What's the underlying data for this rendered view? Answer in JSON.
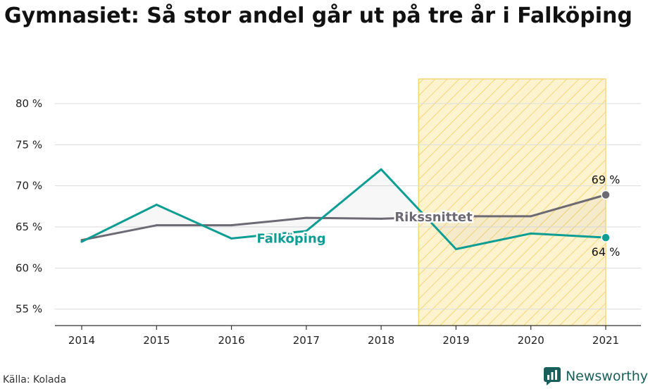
{
  "title": "Gymnasiet: Så stor andel går ut på tre år i Falköping",
  "source": "Källa: Kolada",
  "brand": "Newsworthy",
  "colors": {
    "falkoping": "#0e9d93",
    "riket": "#6d6a73",
    "highlight_fill": "#fdf3cf",
    "highlight_stroke": "#f3cf63",
    "grid": "#dcdcdc",
    "brand": "#1a5f5a"
  },
  "chart_data": {
    "type": "line",
    "x": [
      2014,
      2015,
      2016,
      2017,
      2018,
      2019,
      2020,
      2021
    ],
    "ylim": [
      53,
      83
    ],
    "yticks": [
      55,
      60,
      65,
      70,
      75,
      80
    ],
    "ytick_labels": [
      "55 %",
      "60 %",
      "65 %",
      "70 %",
      "75 %",
      "80 %"
    ],
    "xtick_labels": [
      "2014",
      "2015",
      "2016",
      "2017",
      "2018",
      "2019",
      "2020",
      "2021"
    ],
    "grid": true,
    "highlight_range": [
      2018.5,
      2021
    ],
    "series": [
      {
        "name": "Falköping",
        "key": "falkoping",
        "values": [
          63.2,
          67.7,
          63.6,
          64.5,
          72.0,
          62.3,
          64.2,
          63.7
        ],
        "end_label": "64 %"
      },
      {
        "name": "Rikssnittet",
        "key": "riket",
        "values": [
          63.4,
          65.2,
          65.2,
          66.1,
          66.0,
          66.3,
          66.3,
          68.9
        ],
        "end_label": "69 %"
      }
    ]
  }
}
